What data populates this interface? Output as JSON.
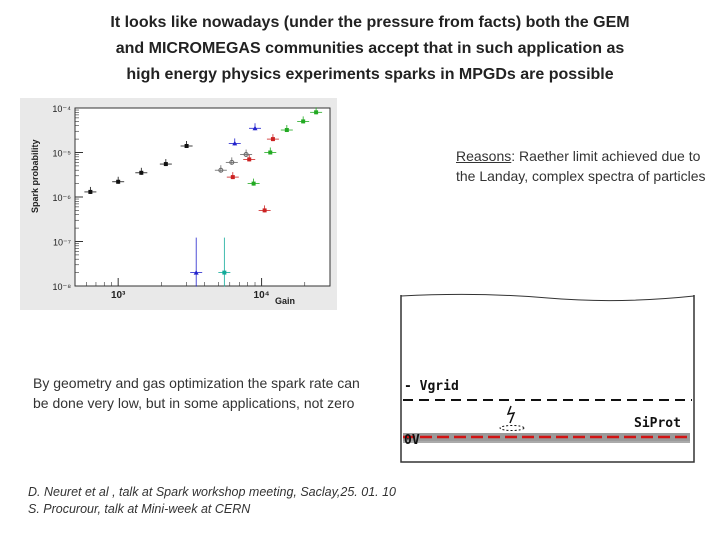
{
  "title": {
    "line1": "It looks like nowadays (under the pressure from facts) both the GEM",
    "line2": "and MICROMEGAS communities  accept that in such application as",
    "line3": "high energy physics experiments sparks in MPGDs are possible"
  },
  "chart_data": {
    "type": "scatter",
    "ylabel": "Spark probability",
    "xlabel": "Gain",
    "x_scale": "log",
    "y_scale": "log",
    "xlim": [
      500,
      30000
    ],
    "ylim": [
      1e-08,
      0.0001
    ],
    "x_ticks": [
      "10³",
      "10⁴"
    ],
    "y_ticks": [
      "10⁻⁴",
      "10⁻⁵",
      "10⁻⁶",
      "10⁻⁷",
      "10⁻⁸"
    ],
    "legend_position": "top-left",
    "series": [
      {
        "color": "#111111",
        "marker": "square",
        "x": [
          640,
          1000,
          1450,
          2150,
          3000
        ],
        "y": [
          1.3e-06,
          2.2e-06,
          3.5e-06,
          5.5e-06,
          1.4e-05
        ]
      },
      {
        "color": "#cc2222",
        "marker": "square",
        "x": [
          6300,
          8200,
          12000,
          10500
        ],
        "y": [
          2.8e-06,
          7e-06,
          2e-05,
          5e-07
        ]
      },
      {
        "color": "#22aa22",
        "marker": "square",
        "x": [
          8800,
          11500,
          15000,
          19500,
          24000
        ],
        "y": [
          2e-06,
          1e-05,
          3.2e-05,
          5e-05,
          8e-05
        ]
      },
      {
        "color": "#2222cc",
        "marker": "triangle",
        "x": [
          3500,
          6500,
          9000
        ],
        "y": [
          2e-08,
          1.6e-05,
          3.5e-05
        ]
      },
      {
        "color": "#666666",
        "marker": "circle",
        "x": [
          5200,
          6200,
          7800
        ],
        "y": [
          4e-06,
          6e-06,
          9e-06
        ]
      },
      {
        "color": "#11aa99",
        "marker": "square",
        "x": [
          5500
        ],
        "y": [
          2e-08
        ]
      }
    ]
  },
  "reasons": {
    "label": "Reasons",
    "text": ": Raether limit achieved due to the Landay, complex spectra of particles"
  },
  "geometry": {
    "text": "By geometry and gas optimization the spark rate can be done very low, but in some applications, not zero"
  },
  "refs": {
    "line1": "D. Neuret et al , talk at Spark workshop meeting, Saclay,25. 01. 10",
    "line2": "S. Procurour, talk at Mini-week at CERN"
  },
  "sketch": {
    "vgrid_label": "- Vgrid",
    "siprot_label": "SiProt",
    "zero_label": "0V"
  }
}
